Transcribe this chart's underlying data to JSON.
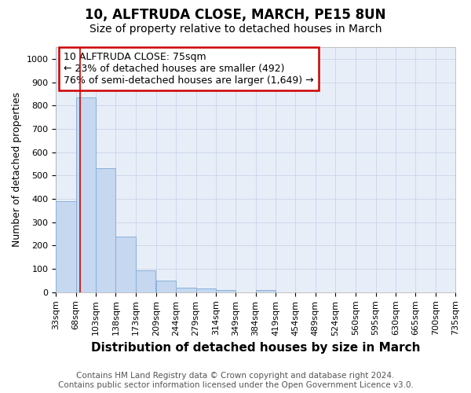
{
  "title": "10, ALFTRUDA CLOSE, MARCH, PE15 8UN",
  "subtitle": "Size of property relative to detached houses in March",
  "xlabel": "Distribution of detached houses by size in March",
  "ylabel": "Number of detached properties",
  "bins": [
    33,
    68,
    103,
    138,
    173,
    209,
    244,
    279,
    314,
    349,
    384,
    419,
    454,
    489,
    524,
    560,
    595,
    630,
    665,
    700,
    735
  ],
  "bar_heights": [
    390,
    835,
    530,
    240,
    95,
    50,
    20,
    15,
    10,
    0,
    10,
    0,
    0,
    0,
    0,
    0,
    0,
    0,
    0,
    0
  ],
  "bar_color": "#c5d8f0",
  "bar_edge_color": "#8ab0d8",
  "property_size": 75,
  "red_line_color": "#cc0000",
  "annotation_line1": "10 ALFTRUDA CLOSE: 75sqm",
  "annotation_line2": "← 23% of detached houses are smaller (492)",
  "annotation_line3": "76% of semi-detached houses are larger (1,649) →",
  "annotation_box_color": "#cc0000",
  "ylim": [
    0,
    1050
  ],
  "yticks": [
    0,
    100,
    200,
    300,
    400,
    500,
    600,
    700,
    800,
    900,
    1000
  ],
  "background_color": "#ffffff",
  "plot_bg_color": "#e8eef8",
  "grid_color": "#c8d4e8",
  "footer_line1": "Contains HM Land Registry data © Crown copyright and database right 2024.",
  "footer_line2": "Contains public sector information licensed under the Open Government Licence v3.0.",
  "title_fontsize": 12,
  "subtitle_fontsize": 10,
  "xlabel_fontsize": 11,
  "ylabel_fontsize": 9,
  "tick_fontsize": 8,
  "annotation_fontsize": 9,
  "footer_fontsize": 7.5
}
